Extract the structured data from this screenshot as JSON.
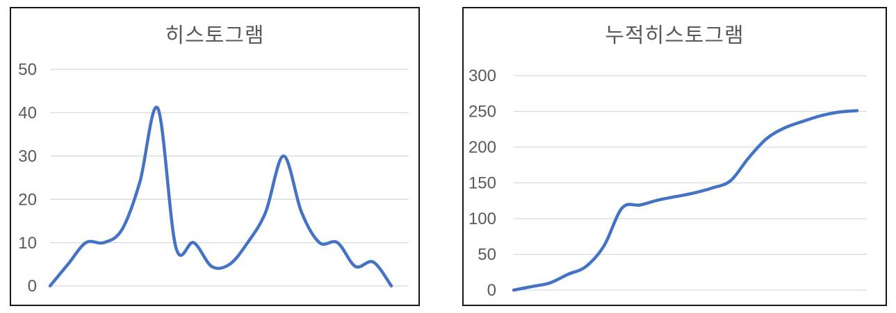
{
  "page": {
    "background_color": "#ffffff",
    "chart_border_color": "#161616"
  },
  "chart_data": [
    {
      "type": "line",
      "smooth": true,
      "title": "히스토그램",
      "xlabel": "",
      "ylabel": "",
      "x_tick_labels": "none",
      "y_ticks": [
        0,
        10,
        20,
        30,
        40,
        50
      ],
      "ylim": [
        0,
        50
      ],
      "grid": true,
      "legend": "none",
      "line_color": "#4472C4",
      "grid_color": "#D9D9D9",
      "text_color": "#595959",
      "values": [
        0,
        5,
        10,
        10,
        13,
        24,
        41,
        9,
        10,
        4.5,
        5,
        10,
        17,
        30,
        17,
        10,
        10,
        4.5,
        5.5,
        0
      ]
    },
    {
      "type": "line",
      "smooth": true,
      "title": "누적히스토그램",
      "xlabel": "",
      "ylabel": "",
      "x_tick_labels": "none",
      "y_ticks": [
        0,
        50,
        100,
        150,
        200,
        250,
        300
      ],
      "ylim": [
        0,
        300
      ],
      "grid": true,
      "legend": "none",
      "line_color": "#4472C4",
      "grid_color": "#D9D9D9",
      "text_color": "#595959",
      "values": [
        0,
        5,
        10,
        22,
        33,
        62,
        115,
        119,
        126,
        131,
        136,
        143,
        153,
        185,
        212,
        227,
        236,
        244,
        249,
        251
      ]
    }
  ]
}
